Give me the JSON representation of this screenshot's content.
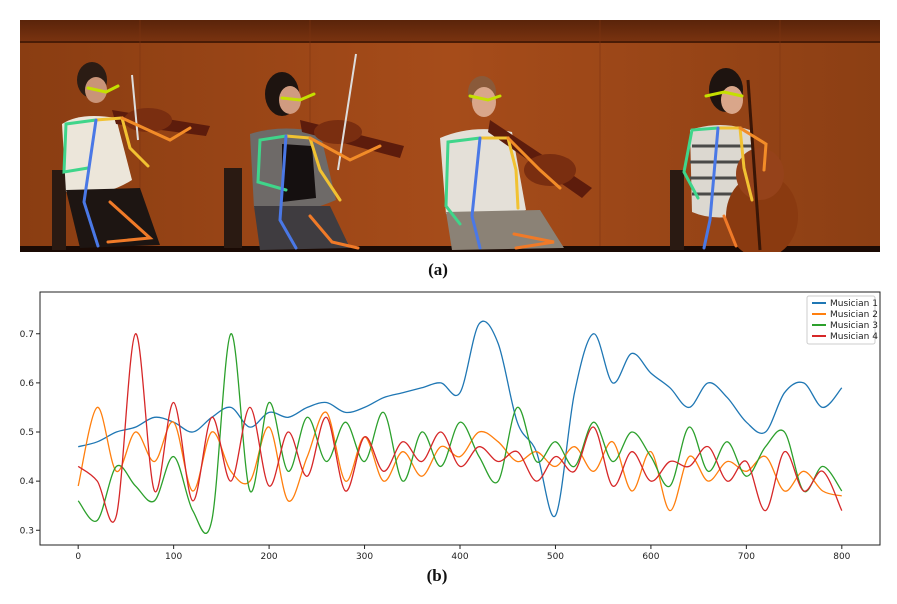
{
  "panel_a": {
    "caption": "(a)",
    "musician_count": 4
  },
  "panel_b": {
    "caption": "(b)"
  },
  "chart_data": {
    "type": "line",
    "title": "",
    "xlabel": "",
    "ylabel": "",
    "xlim": [
      -40,
      840
    ],
    "ylim": [
      0.27,
      0.785
    ],
    "xticks": [
      0,
      100,
      200,
      300,
      400,
      500,
      600,
      700,
      800
    ],
    "yticks": [
      0.3,
      0.4,
      0.5,
      0.6,
      0.7
    ],
    "ytick_labels": [
      "0.3",
      "0.4",
      "0.5",
      "0.6",
      "0.7"
    ],
    "grid": false,
    "legend_position": "top-right",
    "x": [
      0,
      20,
      40,
      60,
      80,
      100,
      120,
      140,
      160,
      180,
      200,
      220,
      240,
      260,
      280,
      300,
      320,
      340,
      360,
      380,
      400,
      420,
      440,
      460,
      480,
      500,
      520,
      540,
      560,
      580,
      600,
      620,
      640,
      660,
      680,
      700,
      720,
      740,
      760,
      780,
      800
    ],
    "series": [
      {
        "name": "Musician 1",
        "color": "#1f77b4",
        "values": [
          0.47,
          0.48,
          0.5,
          0.51,
          0.53,
          0.52,
          0.5,
          0.53,
          0.55,
          0.51,
          0.54,
          0.53,
          0.55,
          0.56,
          0.54,
          0.55,
          0.57,
          0.58,
          0.59,
          0.6,
          0.58,
          0.72,
          0.68,
          0.52,
          0.46,
          0.33,
          0.58,
          0.7,
          0.6,
          0.66,
          0.62,
          0.59,
          0.55,
          0.6,
          0.57,
          0.52,
          0.5,
          0.58,
          0.6,
          0.55,
          0.59
        ]
      },
      {
        "name": "Musician 2",
        "color": "#ff7f0e",
        "values": [
          0.39,
          0.55,
          0.42,
          0.5,
          0.44,
          0.52,
          0.38,
          0.5,
          0.42,
          0.4,
          0.51,
          0.36,
          0.45,
          0.54,
          0.4,
          0.49,
          0.4,
          0.46,
          0.41,
          0.47,
          0.45,
          0.5,
          0.48,
          0.44,
          0.46,
          0.43,
          0.47,
          0.42,
          0.48,
          0.38,
          0.46,
          0.34,
          0.45,
          0.4,
          0.44,
          0.42,
          0.45,
          0.38,
          0.42,
          0.38,
          0.37
        ]
      },
      {
        "name": "Musician 3",
        "color": "#2ca02c",
        "values": [
          0.36,
          0.32,
          0.43,
          0.39,
          0.36,
          0.45,
          0.34,
          0.32,
          0.7,
          0.38,
          0.56,
          0.42,
          0.53,
          0.44,
          0.52,
          0.44,
          0.54,
          0.4,
          0.5,
          0.43,
          0.52,
          0.45,
          0.4,
          0.55,
          0.44,
          0.48,
          0.43,
          0.52,
          0.44,
          0.5,
          0.45,
          0.39,
          0.51,
          0.42,
          0.48,
          0.41,
          0.47,
          0.5,
          0.38,
          0.43,
          0.38
        ]
      },
      {
        "name": "Musician 4",
        "color": "#d62728",
        "values": [
          0.43,
          0.4,
          0.33,
          0.7,
          0.38,
          0.56,
          0.36,
          0.53,
          0.4,
          0.55,
          0.39,
          0.5,
          0.41,
          0.53,
          0.38,
          0.49,
          0.42,
          0.48,
          0.44,
          0.5,
          0.43,
          0.47,
          0.44,
          0.46,
          0.4,
          0.45,
          0.42,
          0.51,
          0.39,
          0.46,
          0.4,
          0.44,
          0.43,
          0.47,
          0.4,
          0.44,
          0.34,
          0.46,
          0.38,
          0.42,
          0.34
        ]
      }
    ]
  }
}
